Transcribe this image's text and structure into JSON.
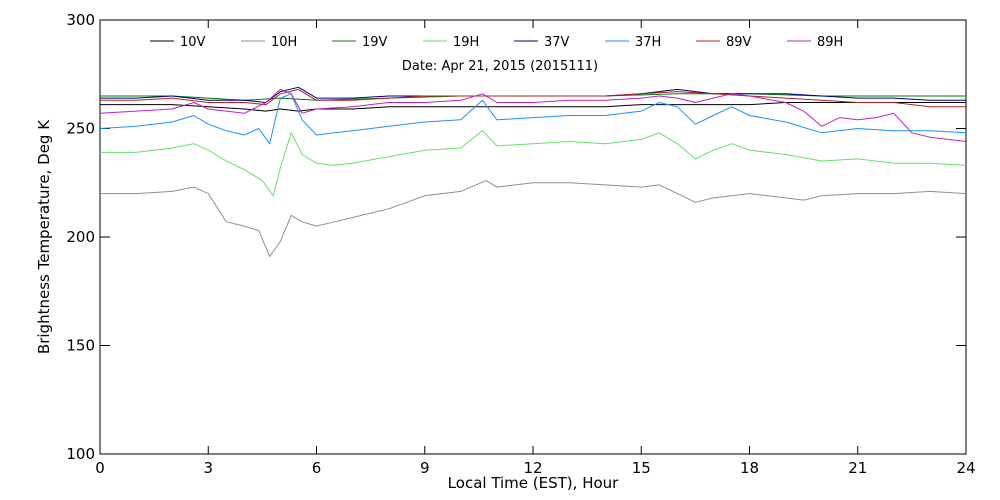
{
  "chart_data": {
    "type": "line",
    "title": "",
    "annotation": "Date: Apr 21, 2015 (2015111)",
    "xlabel": "Local Time (EST), Hour",
    "ylabel": "Brightness Temperature, Deg K",
    "xlim": [
      0,
      24
    ],
    "ylim": [
      100,
      300
    ],
    "xticks": [
      0,
      3,
      6,
      9,
      12,
      15,
      18,
      21,
      24
    ],
    "yticks": [
      100,
      150,
      200,
      250,
      300
    ],
    "grid": false,
    "legend_position": "top",
    "series": [
      {
        "name": "10V",
        "color": "#000000",
        "x": [
          0,
          1,
          2,
          3,
          4,
          4.6,
          5,
          5.5,
          6,
          7,
          8,
          9,
          10,
          11,
          12,
          13,
          14,
          15,
          16,
          17,
          18,
          19,
          20,
          21,
          22,
          23,
          24
        ],
        "y": [
          261,
          261,
          261,
          260,
          259,
          258,
          259,
          258,
          259,
          259,
          260,
          260,
          260,
          260,
          260,
          260,
          260,
          261,
          261,
          261,
          261,
          262,
          262,
          262,
          262,
          262,
          262
        ]
      },
      {
        "name": "10H",
        "color": "#909090",
        "x": [
          0,
          1,
          2,
          2.6,
          3,
          3.5,
          4,
          4.4,
          4.7,
          5,
          5.3,
          5.6,
          6,
          6.5,
          7,
          8,
          9,
          10,
          10.7,
          11,
          12,
          13,
          14,
          15,
          15.5,
          16,
          16.5,
          17,
          18,
          19,
          19.5,
          20,
          21,
          22,
          23,
          24
        ],
        "y": [
          220,
          220,
          221,
          223,
          220,
          207,
          205,
          203,
          191,
          198,
          210,
          207,
          205,
          207,
          209,
          213,
          219,
          221,
          226,
          223,
          225,
          225,
          224,
          223,
          224,
          220,
          216,
          218,
          220,
          218,
          217,
          219,
          220,
          220,
          221,
          220
        ]
      },
      {
        "name": "19V",
        "color": "#008000",
        "x": [
          0,
          2,
          3,
          4,
          5,
          6,
          8,
          10,
          12,
          14,
          16,
          18,
          20,
          22,
          24
        ],
        "y": [
          265,
          265,
          264,
          263,
          264,
          263,
          264,
          265,
          265,
          265,
          266,
          266,
          265,
          265,
          265
        ]
      },
      {
        "name": "19H",
        "color": "#66e066",
        "x": [
          0,
          1,
          2,
          2.6,
          3,
          3.5,
          4,
          4.5,
          4.8,
          5,
          5.3,
          5.6,
          6,
          6.5,
          7,
          8,
          9,
          10,
          10.6,
          11,
          12,
          13,
          14,
          15,
          15.5,
          16,
          16.5,
          17,
          17.5,
          18,
          19,
          20,
          21,
          22,
          23,
          24
        ],
        "y": [
          239,
          239,
          241,
          243,
          240,
          235,
          231,
          226,
          219,
          232,
          248,
          238,
          234,
          233,
          234,
          237,
          240,
          241,
          249,
          242,
          243,
          244,
          243,
          245,
          248,
          243,
          236,
          240,
          243,
          240,
          238,
          235,
          236,
          234,
          234,
          233
        ]
      },
      {
        "name": "37V",
        "color": "#00008b",
        "x": [
          0,
          1,
          2,
          3,
          4,
          4.6,
          5,
          5.5,
          6,
          7,
          8,
          9,
          10,
          11,
          12,
          13,
          14,
          15,
          16,
          17,
          18,
          19,
          20,
          21,
          22,
          23,
          24
        ],
        "y": [
          264,
          264,
          265,
          263,
          263,
          262,
          267,
          269,
          264,
          264,
          265,
          265,
          265,
          265,
          265,
          265,
          265,
          266,
          268,
          266,
          266,
          266,
          265,
          264,
          264,
          263,
          263
        ]
      },
      {
        "name": "37H",
        "color": "#1e90ff",
        "x": [
          0,
          1,
          2,
          2.6,
          3,
          3.5,
          4,
          4.4,
          4.7,
          5,
          5.3,
          5.6,
          6,
          6.5,
          7,
          8,
          9,
          10,
          10.6,
          11,
          12,
          13,
          14,
          15,
          15.5,
          16,
          16.5,
          17,
          17.5,
          18,
          19,
          20,
          21,
          22,
          23,
          24
        ],
        "y": [
          250,
          251,
          253,
          256,
          252,
          249,
          247,
          250,
          243,
          264,
          266,
          254,
          247,
          248,
          249,
          251,
          253,
          254,
          263,
          254,
          255,
          256,
          256,
          258,
          262,
          260,
          252,
          256,
          260,
          256,
          253,
          248,
          250,
          249,
          249,
          248
        ]
      },
      {
        "name": "89V",
        "color": "#b22222",
        "x": [
          0,
          1,
          2,
          3,
          4,
          4.6,
          5,
          5.5,
          6,
          7,
          8,
          9,
          10,
          11,
          12,
          13,
          14,
          15,
          16,
          17,
          18,
          19,
          20,
          21,
          22,
          23,
          24
        ],
        "y": [
          263,
          263,
          264,
          262,
          262,
          261,
          266,
          268,
          263,
          263,
          264,
          265,
          265,
          265,
          265,
          265,
          265,
          266,
          267,
          266,
          265,
          264,
          263,
          262,
          262,
          260,
          260
        ]
      },
      {
        "name": "89H",
        "color": "#c020c0",
        "x": [
          0,
          1,
          2,
          2.6,
          3,
          3.5,
          4,
          4.6,
          5,
          5.3,
          5.6,
          6,
          7,
          8,
          9,
          10,
          10.6,
          11,
          12,
          13,
          14,
          15,
          15.5,
          16,
          16.5,
          17,
          17.5,
          18,
          19,
          19.5,
          20,
          20.5,
          21,
          21.5,
          22,
          22.5,
          23,
          24
        ],
        "y": [
          257,
          258,
          259,
          262,
          259,
          258,
          257,
          262,
          268,
          266,
          257,
          259,
          260,
          262,
          262,
          263,
          266,
          262,
          262,
          263,
          263,
          264,
          265,
          264,
          262,
          264,
          266,
          265,
          262,
          258,
          251,
          255,
          254,
          255,
          257,
          248,
          246,
          244
        ]
      }
    ]
  }
}
